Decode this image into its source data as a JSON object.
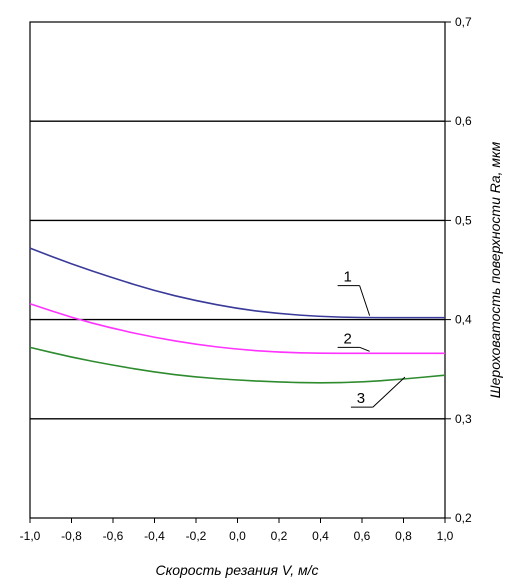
{
  "chart_data": {
    "type": "line",
    "xlabel": "Скорость резания V, м/с",
    "ylabel": "Шероховатость поверхности Ra, мкм",
    "xlim": [
      -1.0,
      1.0
    ],
    "ylim": [
      0.2,
      0.7
    ],
    "x_ticks": [
      "-1,0",
      "-0,8",
      "-0,6",
      "-0,4",
      "-0,2",
      "0,0",
      "0,2",
      "0,4",
      "0,6",
      "0,8",
      "1,0"
    ],
    "y_ticks": [
      "0,2",
      "0,3",
      "0,4",
      "0,5",
      "0,6",
      "0,7"
    ],
    "y_axis_side": "right",
    "grid": "horizontal",
    "x": [
      -1.0,
      -0.8,
      -0.6,
      -0.4,
      -0.2,
      0.0,
      0.2,
      0.4,
      0.6,
      0.8,
      1.0
    ],
    "series": [
      {
        "name": "1",
        "color": "#3a3a9a",
        "values": [
          0.472,
          0.456,
          0.442,
          0.429,
          0.419,
          0.411,
          0.406,
          0.403,
          0.402,
          0.402,
          0.402
        ]
      },
      {
        "name": "2",
        "color": "#ff33ff",
        "values": [
          0.416,
          0.402,
          0.391,
          0.382,
          0.375,
          0.37,
          0.367,
          0.366,
          0.366,
          0.366,
          0.366
        ]
      },
      {
        "name": "3",
        "color": "#2e8b2e",
        "values": [
          0.372,
          0.362,
          0.354,
          0.347,
          0.342,
          0.339,
          0.337,
          0.336,
          0.337,
          0.34,
          0.344
        ]
      }
    ]
  }
}
